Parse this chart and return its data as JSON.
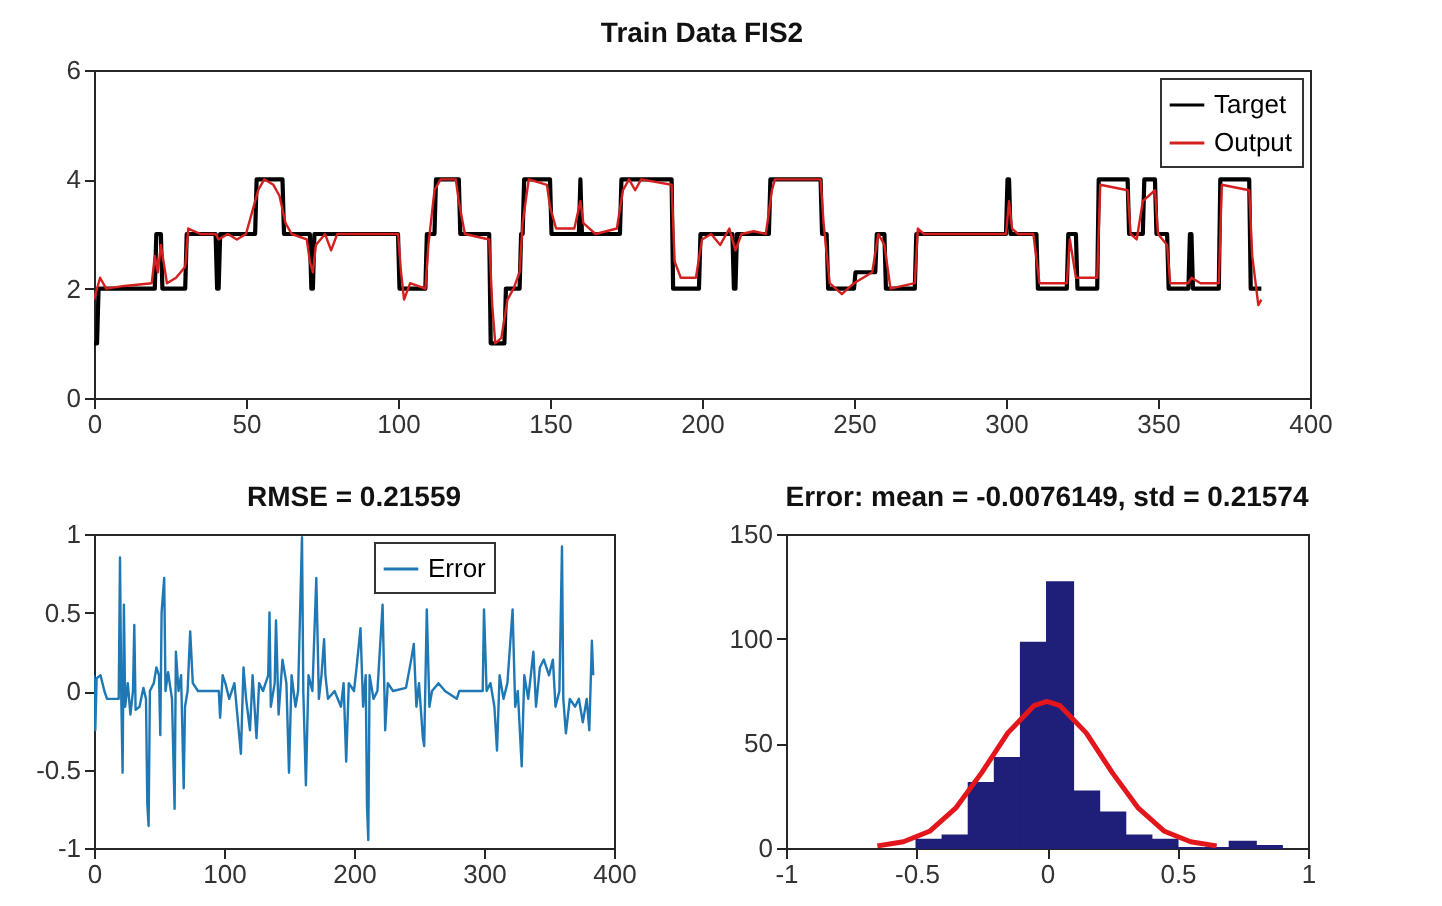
{
  "chart_data": [
    {
      "type": "line",
      "title": "Train Data FIS2",
      "xlim": [
        0,
        400
      ],
      "xticks": [
        0,
        50,
        100,
        150,
        200,
        250,
        300,
        350,
        400
      ],
      "ylim": [
        0,
        6
      ],
      "yticks": [
        0,
        2,
        4,
        6
      ],
      "legend": "top right",
      "series": [
        {
          "name": "Target",
          "color": "#000000",
          "x": [
            0,
            1,
            1.5,
            20,
            20.5,
            22,
            22.5,
            30,
            30.5,
            40,
            40.5,
            41,
            41.5,
            53,
            53.5,
            62,
            62.5,
            71,
            71.5,
            72,
            72.5,
            100,
            100.5,
            109,
            109.5,
            112,
            112.5,
            120,
            120.5,
            130,
            130.5,
            135,
            135.5,
            140,
            140.5,
            141,
            141.5,
            150,
            150.5,
            159.5,
            160,
            160.5,
            173,
            173.5,
            190,
            190.5,
            199,
            199.5,
            210,
            210.5,
            211,
            211.5,
            222,
            222.5,
            239,
            239.5,
            241,
            241.5,
            250,
            250.5,
            257,
            257.5,
            260,
            260.5,
            270,
            270.5,
            300,
            300.5,
            301,
            301.5,
            310,
            310.5,
            320,
            320.5,
            323,
            323.5,
            330,
            330.5,
            340,
            340.5,
            345,
            345.5,
            349,
            349.5,
            353,
            353.5,
            360,
            360.5,
            361,
            361.5,
            370,
            370.5,
            380,
            380.5,
            384
          ],
          "values": [
            1,
            1,
            2,
            2,
            3,
            3,
            2,
            2,
            3,
            3,
            2,
            2,
            3,
            3,
            4,
            4,
            3,
            3,
            2,
            2,
            3,
            3,
            2,
            2,
            3,
            3,
            4,
            4,
            3,
            3,
            1,
            1,
            2,
            2,
            3,
            3,
            4,
            4,
            3,
            3,
            4,
            3,
            3,
            4,
            4,
            2,
            2,
            3,
            3,
            2,
            2,
            3,
            3,
            4,
            4,
            3,
            3,
            2,
            2,
            2.3,
            2.3,
            3,
            3,
            2,
            2,
            3,
            3,
            4,
            4,
            3,
            3,
            2,
            2,
            3,
            3,
            2,
            2,
            4,
            4,
            3,
            3,
            4,
            4,
            3,
            3,
            2,
            2,
            3,
            3,
            2,
            2,
            4,
            4,
            2,
            2
          ]
        },
        {
          "name": "Output",
          "color": "#d4211f",
          "x": [
            0,
            2,
            4,
            10,
            19,
            20,
            21,
            22,
            24,
            27,
            30,
            31,
            35,
            40,
            41,
            44,
            47,
            50,
            52,
            54,
            56,
            59,
            61,
            63,
            65,
            70,
            71,
            72,
            73,
            76,
            78,
            80,
            100,
            101,
            102,
            104,
            109,
            110,
            112,
            114,
            119,
            120,
            122,
            130,
            131,
            132,
            134,
            136,
            138,
            140,
            141,
            143,
            149,
            150,
            152,
            158,
            160,
            161,
            163,
            165,
            172,
            174,
            176,
            178,
            180,
            190,
            191,
            193,
            198,
            200,
            203,
            206,
            209,
            211,
            213,
            217,
            221,
            223,
            224,
            239,
            240,
            242,
            246,
            250,
            256,
            258,
            260,
            262,
            270,
            271,
            273,
            300,
            301,
            302,
            304,
            309,
            311,
            320,
            321,
            323,
            330,
            331,
            340,
            341,
            343,
            345,
            349,
            350,
            353,
            354,
            360,
            361,
            364,
            370,
            371,
            380,
            381,
            383,
            384
          ],
          "values": [
            1.8,
            2.2,
            2.0,
            2.05,
            2.1,
            2.6,
            2.3,
            2.8,
            2.1,
            2.2,
            2.4,
            3.1,
            3.0,
            3.0,
            2.9,
            3.0,
            2.9,
            3.0,
            3.4,
            3.8,
            4.0,
            3.9,
            3.7,
            3.2,
            3.0,
            2.9,
            2.5,
            2.3,
            2.8,
            3.0,
            2.7,
            3.0,
            3.0,
            2.3,
            1.8,
            2.1,
            2.0,
            2.8,
            3.8,
            4.0,
            4.0,
            3.6,
            3.0,
            2.9,
            1.7,
            1.0,
            1.1,
            1.8,
            2.0,
            2.3,
            3.2,
            4.0,
            3.9,
            3.5,
            3.1,
            3.1,
            3.6,
            3.2,
            3.1,
            3.0,
            3.1,
            3.8,
            4.0,
            3.8,
            4.0,
            3.9,
            2.5,
            2.2,
            2.2,
            2.9,
            3.0,
            2.8,
            3.1,
            2.7,
            3.0,
            3.05,
            3.0,
            3.8,
            4.0,
            4.0,
            3.2,
            2.1,
            1.9,
            2.1,
            2.3,
            3.0,
            2.8,
            2.0,
            2.1,
            3.1,
            3.0,
            3.0,
            3.6,
            3.1,
            3.0,
            3.0,
            2.1,
            2.1,
            2.9,
            2.2,
            2.2,
            3.9,
            3.8,
            3.0,
            2.9,
            3.6,
            3.8,
            3.0,
            2.8,
            2.1,
            2.1,
            2.2,
            2.1,
            2.1,
            3.9,
            3.8,
            2.6,
            1.7,
            1.8
          ]
        }
      ]
    },
    {
      "type": "line",
      "title": "RMSE = 0.21559",
      "xlim": [
        0,
        400
      ],
      "xticks": [
        0,
        100,
        200,
        300,
        400
      ],
      "ylim": [
        -1,
        1
      ],
      "yticks": [
        -1,
        -0.5,
        0,
        0.5,
        1
      ],
      "legend": "top right",
      "series": [
        {
          "name": "Error",
          "color": "#1f78b4",
          "x": [
            0,
            1,
            2,
            5,
            8,
            10,
            19,
            20,
            21,
            22,
            23,
            24,
            26,
            28,
            30,
            31,
            32,
            35,
            38,
            40,
            41,
            42,
            43,
            46,
            48,
            50,
            51,
            52,
            54,
            55,
            57,
            60,
            62,
            63,
            65,
            67,
            69,
            70,
            72,
            74,
            76,
            80,
            96,
            97,
            99,
            101,
            104,
            108,
            113,
            115,
            117,
            120,
            122,
            125,
            127,
            130,
            134,
            135,
            136,
            139,
            140,
            142,
            145,
            148,
            150,
            152,
            155,
            157,
            160,
            161,
            163,
            165,
            168,
            171,
            173,
            175,
            177,
            178,
            180,
            185,
            190,
            192,
            194,
            196,
            200,
            202,
            205,
            207,
            209,
            210,
            211,
            212,
            215,
            218,
            222,
            224,
            226,
            230,
            240,
            244,
            246,
            248,
            250,
            253,
            254,
            256,
            258,
            260,
            265,
            270,
            279,
            281,
            299,
            300,
            302,
            305,
            308,
            310,
            312,
            315,
            318,
            322,
            324,
            326,
            329,
            331,
            334,
            338,
            340,
            343,
            346,
            350,
            353,
            355,
            358,
            360,
            361,
            363,
            366,
            370,
            373,
            376,
            379,
            381,
            383,
            384
          ],
          "values": [
            0.1,
            -0.25,
            0.08,
            0.1,
            0.0,
            -0.05,
            -0.05,
            0.85,
            -0.05,
            -0.52,
            0.55,
            -0.1,
            0.05,
            -0.15,
            0.0,
            0.42,
            -0.12,
            -0.1,
            0.02,
            -0.05,
            -0.72,
            -0.86,
            0.0,
            0.05,
            0.15,
            0.1,
            -0.28,
            0.5,
            0.72,
            0.0,
            0.12,
            -0.05,
            -0.75,
            0.25,
            0.0,
            0.1,
            -0.62,
            -0.1,
            0.0,
            0.38,
            0.05,
            0.0,
            0.0,
            -0.17,
            0.1,
            0.05,
            -0.05,
            0.05,
            -0.4,
            0.15,
            -0.05,
            -0.25,
            0.1,
            -0.3,
            0.05,
            0.0,
            0.1,
            0.5,
            -0.1,
            0.05,
            0.45,
            -0.15,
            0.2,
            0.05,
            -0.52,
            0.1,
            -0.1,
            0.0,
            0.98,
            0.0,
            -0.6,
            0.1,
            0.0,
            0.72,
            -0.05,
            0.1,
            0.33,
            0.1,
            -0.05,
            0.0,
            -0.1,
            0.05,
            -0.45,
            0.05,
            0.0,
            0.15,
            0.4,
            -0.1,
            0.1,
            -0.73,
            -0.95,
            0.1,
            -0.05,
            0.0,
            0.55,
            -0.25,
            0.05,
            0.0,
            0.02,
            0.2,
            0.3,
            -0.1,
            0.05,
            -0.3,
            -0.35,
            0.52,
            -0.1,
            0.0,
            0.05,
            0.0,
            -0.05,
            0.0,
            0.0,
            0.52,
            0.0,
            0.05,
            -0.1,
            -0.38,
            0.1,
            -0.05,
            0.05,
            0.52,
            -0.1,
            0.0,
            -0.48,
            0.1,
            -0.05,
            0.25,
            -0.1,
            0.15,
            0.2,
            0.1,
            0.2,
            -0.1,
            0.0,
            0.92,
            -0.05,
            -0.27,
            -0.05,
            -0.1,
            -0.05,
            -0.2,
            -0.05,
            -0.25,
            0.32,
            0.1
          ]
        }
      ]
    },
    {
      "type": "histogram",
      "title": "Error: mean = -0.0076149, std = 0.21574",
      "xlim": [
        -1,
        1
      ],
      "xticks": [
        -1,
        -0.5,
        0,
        0.5,
        1
      ],
      "ylim": [
        0,
        150
      ],
      "yticks": [
        0,
        50,
        100,
        150
      ],
      "series": [
        {
          "color": "#1f1f7a",
          "bins": [
            -0.5,
            -0.4,
            -0.3,
            -0.2,
            -0.1,
            0,
            0.1,
            0.2,
            0.3,
            0.4,
            0.5,
            0.6,
            0.7,
            0.8,
            0.9
          ],
          "values": [
            4,
            6,
            31,
            43,
            98,
            127,
            27,
            17,
            6,
            4,
            0,
            0,
            3,
            1
          ]
        },
        {
          "type": "line",
          "color": "#e3161b",
          "x": [
            -0.65,
            -0.55,
            -0.45,
            -0.35,
            -0.25,
            -0.15,
            -0.05,
            0,
            0.05,
            0.15,
            0.25,
            0.35,
            0.45,
            0.55,
            0.65
          ],
          "values": [
            1,
            3,
            8,
            19,
            36,
            55,
            68,
            70,
            68,
            55,
            36,
            19,
            8,
            3,
            1
          ]
        }
      ]
    }
  ]
}
